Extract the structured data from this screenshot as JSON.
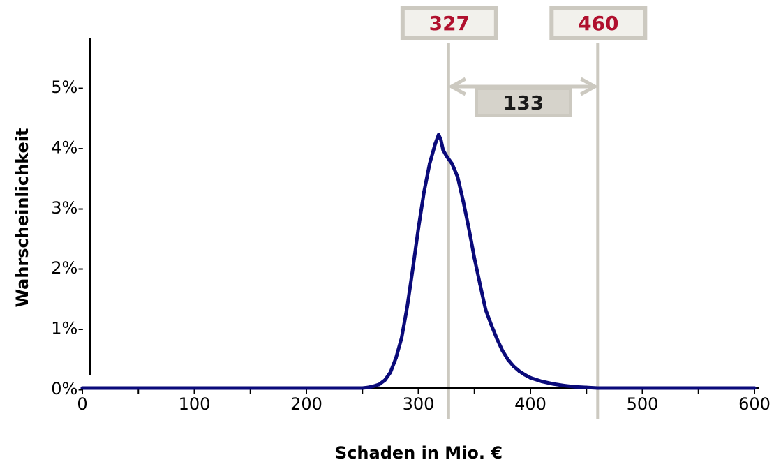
{
  "chart_data": {
    "type": "line",
    "xlabel": "Schaden in Mio. €",
    "ylabel": "Wahrscheinlichkeit",
    "xlim": [
      0,
      600
    ],
    "ylim": [
      0,
      5.5
    ],
    "x_ticks": [
      0,
      100,
      200,
      300,
      400,
      500,
      600
    ],
    "x_tick_labels": [
      "0",
      "100",
      "200",
      "300",
      "400",
      "500",
      "600"
    ],
    "y_ticks": [
      0,
      1,
      2,
      3,
      4,
      5
    ],
    "y_tick_labels": [
      "0%-",
      "1%-",
      "2%-",
      "3%-",
      "4%-",
      "5%-"
    ],
    "series": [
      {
        "color": "#0a0a7a",
        "x": [
          0,
          100,
          200,
          250,
          255,
          260,
          265,
          270,
          275,
          280,
          285,
          290,
          295,
          300,
          305,
          310,
          315,
          318,
          320,
          322,
          325,
          330,
          335,
          340,
          345,
          350,
          355,
          360,
          365,
          370,
          375,
          380,
          385,
          390,
          395,
          400,
          410,
          420,
          430,
          440,
          450,
          460,
          470,
          480,
          500,
          550,
          600
        ],
        "y": [
          0,
          0,
          0,
          0,
          0.01,
          0.03,
          0.06,
          0.13,
          0.26,
          0.5,
          0.83,
          1.35,
          1.98,
          2.65,
          3.25,
          3.72,
          4.05,
          4.2,
          4.12,
          3.95,
          3.85,
          3.72,
          3.5,
          3.1,
          2.65,
          2.15,
          1.72,
          1.3,
          1.05,
          0.82,
          0.62,
          0.47,
          0.36,
          0.28,
          0.22,
          0.17,
          0.11,
          0.07,
          0.04,
          0.02,
          0.01,
          0.0,
          0.0,
          0.0,
          0.0,
          0.0,
          0.0
        ]
      }
    ],
    "markers": [
      {
        "x": 327,
        "label": "327"
      },
      {
        "x": 460,
        "label": "460"
      }
    ],
    "span_label": "133",
    "colors": {
      "line": "#0a0a7a",
      "marker_line": "#ccc9c0",
      "marker_text": "#b0102e",
      "box_fill": "#f2f1ec",
      "box_border": "#ccc9c0",
      "span_box_fill": "#d6d3cb"
    }
  }
}
